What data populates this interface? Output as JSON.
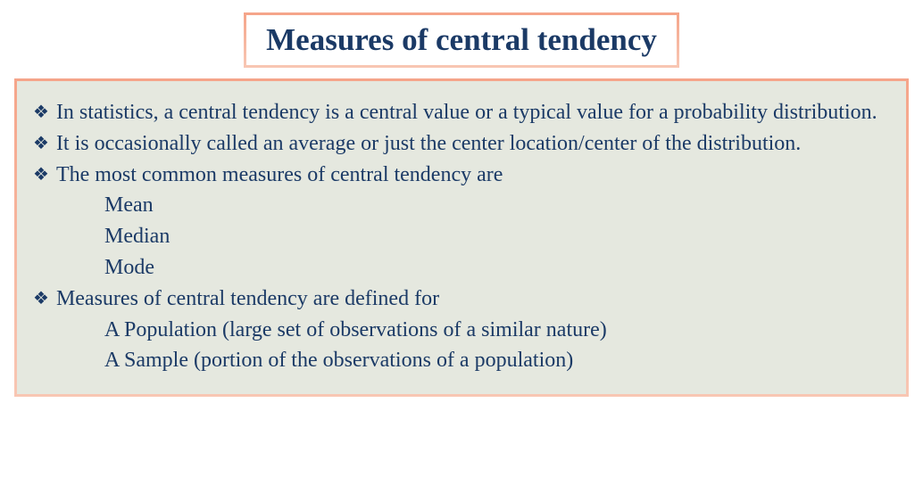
{
  "title": "Measures of central tendency",
  "colors": {
    "text": "#1b3a66",
    "content_bg": "#e5e8df",
    "page_bg": "#ffffff",
    "border_top": "#f5a58a",
    "border_bottom": "#f8c6b3"
  },
  "typography": {
    "title_fontsize": 35,
    "body_fontsize": 24,
    "font_family": "Georgia / Bookman serif"
  },
  "bullet_glyph": "❖",
  "bullets": [
    {
      "text": "In statistics, a central tendency is a central value or a typical value for a probability distribution.",
      "subs": []
    },
    {
      "text": "It is occasionally called an average or just the center location/center of the distribution.",
      "subs": []
    },
    {
      "text": "The most common measures of central tendency are",
      "subs": [
        "Mean",
        "Median",
        "Mode"
      ]
    },
    {
      "text": "Measures of central tendency are defined for",
      "subs": [
        "A Population (large set of observations of a similar nature)",
        "A Sample (portion of the observations of a population)"
      ]
    }
  ]
}
